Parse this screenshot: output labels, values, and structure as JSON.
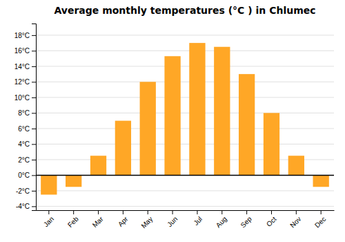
{
  "chart_data": {
    "type": "bar",
    "title": "Average monthly temperatures (°C ) in Chlumec",
    "categories": [
      "Jan",
      "Feb",
      "Mar",
      "Apr",
      "May",
      "Jun",
      "Jul",
      "Aug",
      "Sep",
      "Oct",
      "Nov",
      "Dec"
    ],
    "values": [
      -2.5,
      -1.5,
      2.5,
      7.0,
      12.0,
      15.3,
      17.0,
      16.5,
      13.0,
      8.0,
      2.5,
      -1.5
    ],
    "color": "#FFA726",
    "ylim": [
      -4.5,
      19.5
    ],
    "yticks": [
      {
        "value": -4,
        "label": "-4°C"
      },
      {
        "value": -2,
        "label": "-2°C"
      },
      {
        "value": 0,
        "label": "0°C"
      },
      {
        "value": 2,
        "label": "2°C"
      },
      {
        "value": 4,
        "label": "4°C"
      },
      {
        "value": 6,
        "label": "6°C"
      },
      {
        "value": 8,
        "label": "8°C"
      },
      {
        "value": 10,
        "label": "10°C"
      },
      {
        "value": 12,
        "label": "12°C"
      },
      {
        "value": 14,
        "label": "14°C"
      },
      {
        "value": 16,
        "label": "16°C"
      },
      {
        "value": 18,
        "label": "18°C"
      }
    ],
    "grid": true
  }
}
